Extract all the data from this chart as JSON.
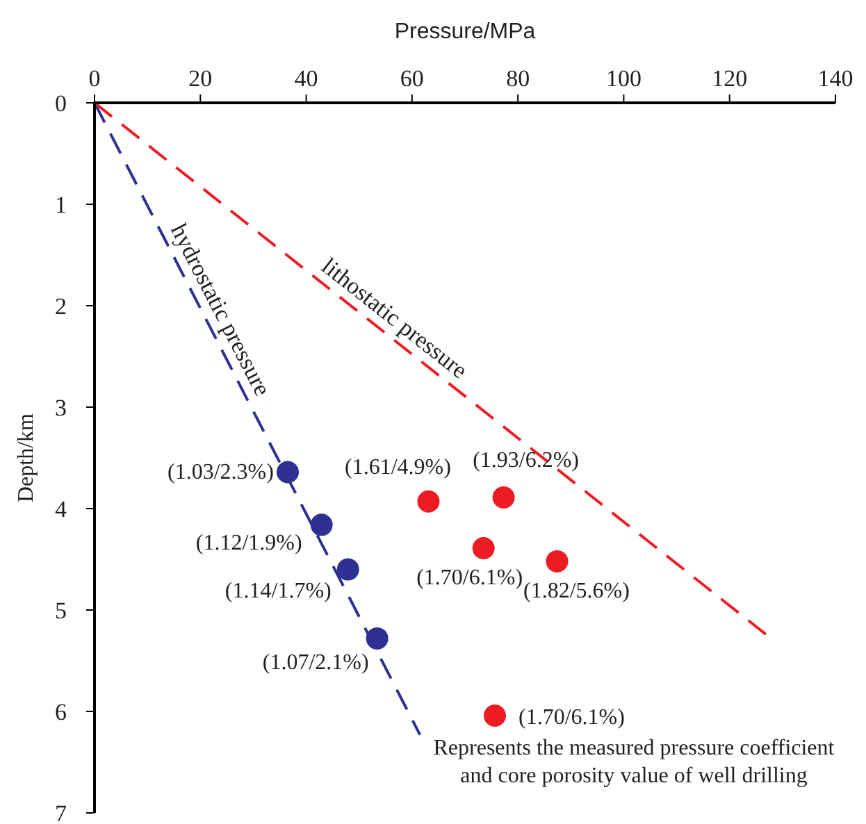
{
  "chart_data": {
    "type": "scatter",
    "xlabel": "Pressure/MPa",
    "ylabel": "Depth/km",
    "xlim": [
      0,
      140
    ],
    "xticks": [
      0,
      20,
      40,
      60,
      80,
      100,
      120,
      140
    ],
    "ylim": [
      7,
      0
    ],
    "yticks": [
      0,
      1,
      2,
      3,
      4,
      5,
      6,
      7
    ],
    "grid": false,
    "legend": "bottom right",
    "annotations": [
      "(1.70/6.1%)"
    ],
    "series": [
      {
        "name": "hydrostatic pressure",
        "type": "line",
        "color": "#2e3192",
        "line_style": "dashed",
        "marker": "none",
        "x": [
          0,
          61.5
        ],
        "values": [
          0,
          6.23
        ]
      },
      {
        "name": "lithostatic pressure",
        "type": "line",
        "color": "#ed1c24",
        "line_style": "dashed",
        "marker": "none",
        "x": [
          0,
          127.1
        ],
        "values": [
          0,
          5.25
        ]
      },
      {
        "type": "scatter",
        "color": "#2e3192",
        "marker": "circle",
        "x": [
          36.5,
          42.9,
          47.9,
          53.4
        ],
        "values": [
          3.64,
          4.16,
          4.6,
          5.28
        ],
        "value_labels": [
          "(1.03/2.3%)",
          "(1.12/1.9%)",
          "(1.14/1.7%)",
          "(1.07/2.1%)"
        ]
      },
      {
        "name": "Represents the measured pressure coefficient and core porosity value of well drilling",
        "type": "scatter",
        "color": "#ed1c24",
        "marker": "circle",
        "x": [
          63.1,
          77.3,
          73.5,
          87.4
        ],
        "values": [
          3.93,
          3.89,
          4.39,
          4.52
        ],
        "value_labels": [
          "(1.61/4.9%)",
          "(1.93/6.2%)",
          "(1.70/6.1%)",
          "(1.82/5.6%)"
        ]
      }
    ]
  }
}
